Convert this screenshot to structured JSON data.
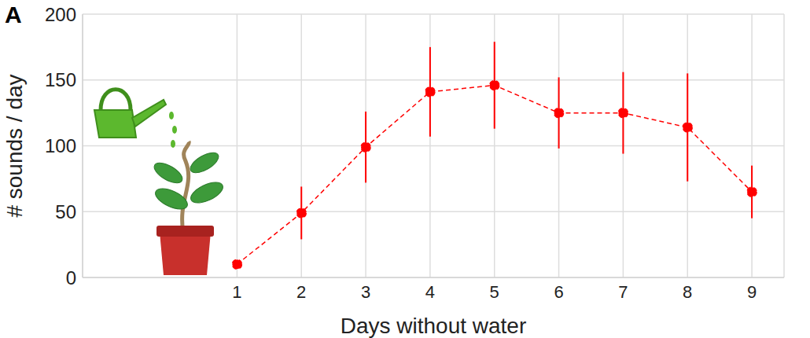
{
  "chart_data": {
    "type": "line",
    "title": "A",
    "x_label": "Days without water",
    "y_label": "# sounds / day",
    "x": [
      1,
      2,
      3,
      4,
      5,
      6,
      7,
      8,
      9
    ],
    "values": [
      10,
      49,
      99,
      141,
      146,
      125,
      125,
      114,
      65
    ],
    "errors": [
      0,
      20,
      27,
      34,
      33,
      27,
      31,
      41,
      20
    ],
    "color": "#ff0000",
    "marker": "circle",
    "line_style": "dashed",
    "xlim": [
      -1.4,
      9.5
    ],
    "xticks": [
      1,
      2,
      3,
      4,
      5,
      6,
      7,
      8,
      9
    ],
    "ylim": [
      0,
      200
    ],
    "yticks": [
      0,
      50,
      100,
      150,
      200
    ],
    "grid": true
  }
}
